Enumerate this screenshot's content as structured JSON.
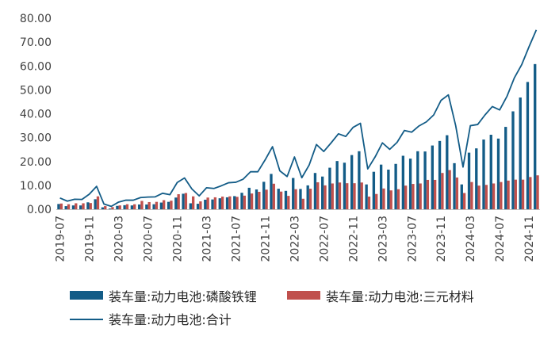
{
  "chart_data": {
    "type": "bar",
    "ylim": [
      0,
      80
    ],
    "yticks": [
      "0.00",
      "10.00",
      "20.00",
      "30.00",
      "40.00",
      "50.00",
      "60.00",
      "70.00",
      "80.00"
    ],
    "x": [
      "2019-07",
      "2019-08",
      "2019-09",
      "2019-10",
      "2019-11",
      "2019-12",
      "2020-01",
      "2020-02",
      "2020-03",
      "2020-04",
      "2020-05",
      "2020-06",
      "2020-07",
      "2020-08",
      "2020-09",
      "2020-10",
      "2020-11",
      "2020-12",
      "2021-01",
      "2021-02",
      "2021-03",
      "2021-04",
      "2021-05",
      "2021-06",
      "2021-07",
      "2021-08",
      "2021-09",
      "2021-10",
      "2021-11",
      "2021-12",
      "2022-01",
      "2022-02",
      "2022-03",
      "2022-04",
      "2022-05",
      "2022-06",
      "2022-07",
      "2022-08",
      "2022-09",
      "2022-10",
      "2022-11",
      "2022-12",
      "2023-01",
      "2023-02",
      "2023-03",
      "2023-04",
      "2023-05",
      "2023-06",
      "2023-07",
      "2023-08",
      "2023-09",
      "2023-10",
      "2023-11",
      "2023-12",
      "2024-01",
      "2024-02",
      "2024-03",
      "2024-04",
      "2024-05",
      "2024-06",
      "2024-07",
      "2024-08",
      "2024-09",
      "2024-10",
      "2024-11",
      "2024-12"
    ],
    "xticks": [
      "2019-07",
      "2019-11",
      "2020-03",
      "2020-07",
      "2020-11",
      "2021-03",
      "2021-07",
      "2021-11",
      "2022-03",
      "2022-07",
      "2022-11",
      "2023-03",
      "2023-07",
      "2023-11",
      "2024-03",
      "2024-07",
      "2024-11"
    ],
    "series": [
      {
        "name": "装车量:动力电池:磷酸铁锂",
        "kind": "bar",
        "color": "#135c87",
        "values": [
          2.2,
          1.3,
          1.6,
          1.6,
          2.9,
          4.2,
          0.8,
          0.3,
          1.4,
          1.7,
          1.6,
          2.0,
          2.0,
          2.1,
          2.8,
          3.1,
          4.9,
          6.5,
          2.5,
          2.3,
          4.0,
          4.1,
          4.6,
          5.0,
          5.5,
          6.9,
          9.0,
          8.3,
          11.5,
          14.8,
          8.6,
          7.7,
          13.1,
          8.5,
          10.0,
          15.2,
          13.7,
          17.4,
          20.2,
          19.5,
          22.7,
          24.3,
          10.4,
          15.7,
          18.7,
          16.6,
          19.0,
          22.4,
          21.2,
          24.3,
          24.2,
          26.7,
          28.6,
          31.0,
          19.3,
          10.4,
          23.7,
          25.5,
          29.2,
          31.2,
          29.6,
          34.5,
          41.0,
          46.8,
          53.3,
          60.8
        ]
      },
      {
        "name": "装车量:动力电池:三元材料",
        "kind": "bar",
        "color": "#c0504d",
        "values": [
          2.4,
          2.1,
          2.5,
          2.5,
          2.6,
          5.4,
          1.3,
          0.9,
          1.6,
          2.1,
          2.1,
          3.5,
          3.0,
          3.1,
          3.8,
          3.6,
          6.3,
          6.8,
          5.4,
          3.3,
          4.9,
          5.0,
          5.3,
          5.4,
          5.2,
          5.7,
          6.6,
          7.3,
          8.2,
          10.7,
          7.4,
          5.6,
          8.4,
          4.4,
          8.6,
          11.3,
          10.0,
          10.8,
          11.2,
          10.9,
          10.9,
          11.2,
          5.3,
          6.4,
          8.7,
          7.9,
          8.4,
          9.9,
          10.6,
          10.8,
          12.3,
          12.3,
          15.2,
          16.4,
          13.3,
          6.8,
          11.4,
          9.9,
          10.2,
          10.8,
          11.4,
          12.0,
          12.4,
          12.4,
          13.5,
          14.2
        ]
      },
      {
        "name": "装车量:动力电池:合计",
        "kind": "line",
        "color": "#135c87",
        "values": [
          4.7,
          3.4,
          4.2,
          4.1,
          6.3,
          9.6,
          2.2,
          1.2,
          3.0,
          3.8,
          3.8,
          4.9,
          5.1,
          5.2,
          6.7,
          6.1,
          11.2,
          13.1,
          8.5,
          5.6,
          9.0,
          8.7,
          9.8,
          11.1,
          11.3,
          12.6,
          15.7,
          15.7,
          20.7,
          26.2,
          16.1,
          13.7,
          21.9,
          13.2,
          18.5,
          27.1,
          24.2,
          27.8,
          31.6,
          30.5,
          34.3,
          36.0,
          16.9,
          21.9,
          27.8,
          25.1,
          28.0,
          33.0,
          32.3,
          34.9,
          36.6,
          39.5,
          45.6,
          47.9,
          35.0,
          17.7,
          35.0,
          35.5,
          39.5,
          43.0,
          41.6,
          47.3,
          55.0,
          60.5,
          68.0,
          75.1
        ]
      }
    ]
  },
  "legend": {
    "lfp_label": "装车量:动力电池:磷酸铁锂",
    "ncm_label": "装车量:动力电池:三元材料",
    "total_label": "装车量:动力电池:合计"
  }
}
